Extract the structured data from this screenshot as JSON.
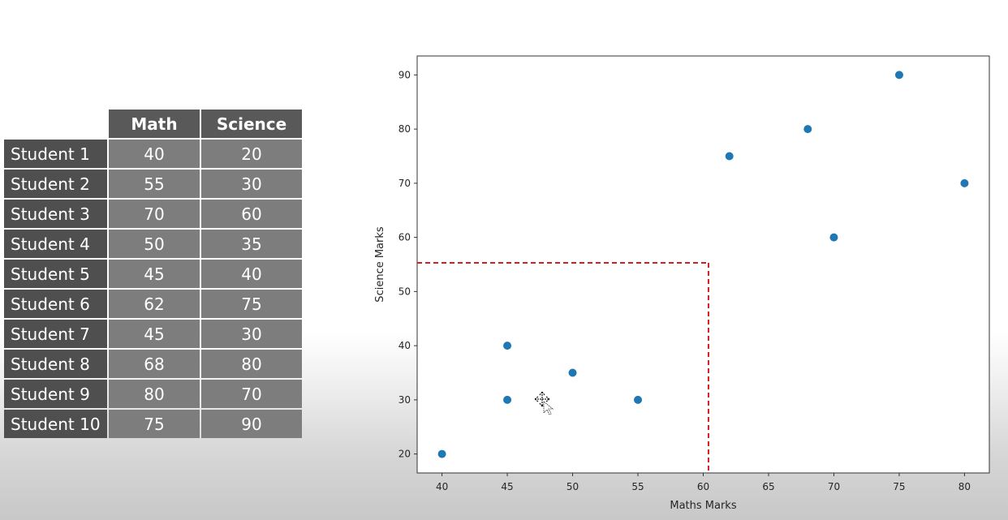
{
  "table": {
    "headers": [
      "Math",
      "Science"
    ],
    "rows": [
      {
        "label": "Student 1",
        "math": "40",
        "science": "20"
      },
      {
        "label": "Student 2",
        "math": "55",
        "science": "30"
      },
      {
        "label": "Student 3",
        "math": "70",
        "science": "60"
      },
      {
        "label": "Student 4",
        "math": "50",
        "science": "35"
      },
      {
        "label": "Student 5",
        "math": "45",
        "science": "40"
      },
      {
        "label": "Student 6",
        "math": "62",
        "science": "75"
      },
      {
        "label": "Student 7",
        "math": "45",
        "science": "30"
      },
      {
        "label": "Student 8",
        "math": "68",
        "science": "80"
      },
      {
        "label": "Student 9",
        "math": "80",
        "science": "70"
      },
      {
        "label": "Student 10",
        "math": "75",
        "science": "90"
      }
    ]
  },
  "chart_data": {
    "type": "scatter",
    "xlabel": "Maths Marks",
    "ylabel": "Science Marks",
    "x": [
      40,
      55,
      70,
      50,
      45,
      62,
      45,
      68,
      80,
      75
    ],
    "y": [
      20,
      30,
      60,
      35,
      40,
      75,
      30,
      80,
      70,
      90
    ],
    "xlim": [
      38.1,
      81.9
    ],
    "ylim": [
      16.5,
      93.5
    ],
    "xticks": [
      40,
      45,
      50,
      55,
      60,
      65,
      70,
      75,
      80
    ],
    "yticks": [
      20,
      30,
      40,
      50,
      60,
      70,
      80,
      90
    ],
    "grid": false,
    "marker_color": "#1f77b4",
    "threshold": {
      "x": 60.4,
      "y": 55.3,
      "color": "#cc2222",
      "style": "dashed"
    }
  }
}
